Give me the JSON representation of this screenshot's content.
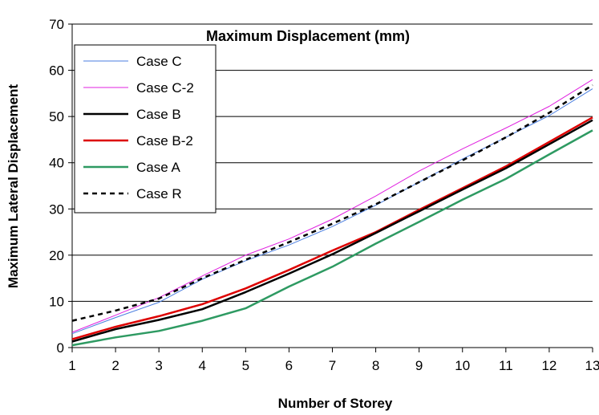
{
  "chart_data": {
    "type": "line",
    "title": "Maximum Displacement (mm)",
    "xlabel": "Number of Storey",
    "ylabel": "Maximum Lateral Displacement",
    "x": [
      1,
      2,
      3,
      4,
      5,
      6,
      7,
      8,
      9,
      10,
      11,
      12,
      13
    ],
    "x_ticks": [
      "1",
      "2",
      "3",
      "4",
      "5",
      "6",
      "7",
      "8",
      "9",
      "10",
      "11",
      "12",
      "13"
    ],
    "y_ticks": [
      "0",
      "10",
      "20",
      "30",
      "40",
      "50",
      "60",
      "70"
    ],
    "xlim": [
      1,
      13
    ],
    "ylim": [
      0,
      70
    ],
    "grid": "horizontal",
    "legend_position": "top-left",
    "series": [
      {
        "name": "Case C",
        "color": "#4a7ee0",
        "dash": "solid",
        "width": 1,
        "values": [
          3.0,
          6.5,
          9.8,
          14.8,
          18.8,
          22.2,
          26.2,
          30.8,
          35.8,
          40.8,
          45.5,
          50.2,
          56.0
        ]
      },
      {
        "name": "Case C-2",
        "color": "#e020e0",
        "dash": "solid",
        "width": 1,
        "values": [
          3.3,
          7.0,
          10.8,
          15.5,
          20.0,
          23.5,
          27.8,
          32.8,
          38.2,
          43.0,
          47.5,
          52.2,
          58.0
        ]
      },
      {
        "name": "Case B",
        "color": "#000000",
        "dash": "solid",
        "width": 2.5,
        "values": [
          1.3,
          4.0,
          6.0,
          8.3,
          12.0,
          16.0,
          20.2,
          24.8,
          29.5,
          34.2,
          38.8,
          44.0,
          49.2
        ]
      },
      {
        "name": "Case B-2",
        "color": "#dd0000",
        "dash": "solid",
        "width": 2.5,
        "values": [
          1.8,
          4.5,
          6.8,
          9.4,
          12.8,
          16.8,
          21.0,
          25.0,
          29.8,
          34.5,
          39.2,
          44.5,
          49.8
        ]
      },
      {
        "name": "Case A",
        "color": "#2e9a62",
        "dash": "solid",
        "width": 2.5,
        "values": [
          0.5,
          2.2,
          3.6,
          5.8,
          8.5,
          13.2,
          17.5,
          22.5,
          27.2,
          32.0,
          36.5,
          41.8,
          47.0
        ]
      },
      {
        "name": "Case R",
        "color": "#000000",
        "dash": "dashed",
        "width": 2.5,
        "values": [
          5.8,
          8.0,
          10.6,
          15.0,
          19.0,
          22.8,
          26.8,
          31.0,
          35.8,
          40.5,
          45.5,
          50.8,
          56.8
        ]
      }
    ]
  }
}
